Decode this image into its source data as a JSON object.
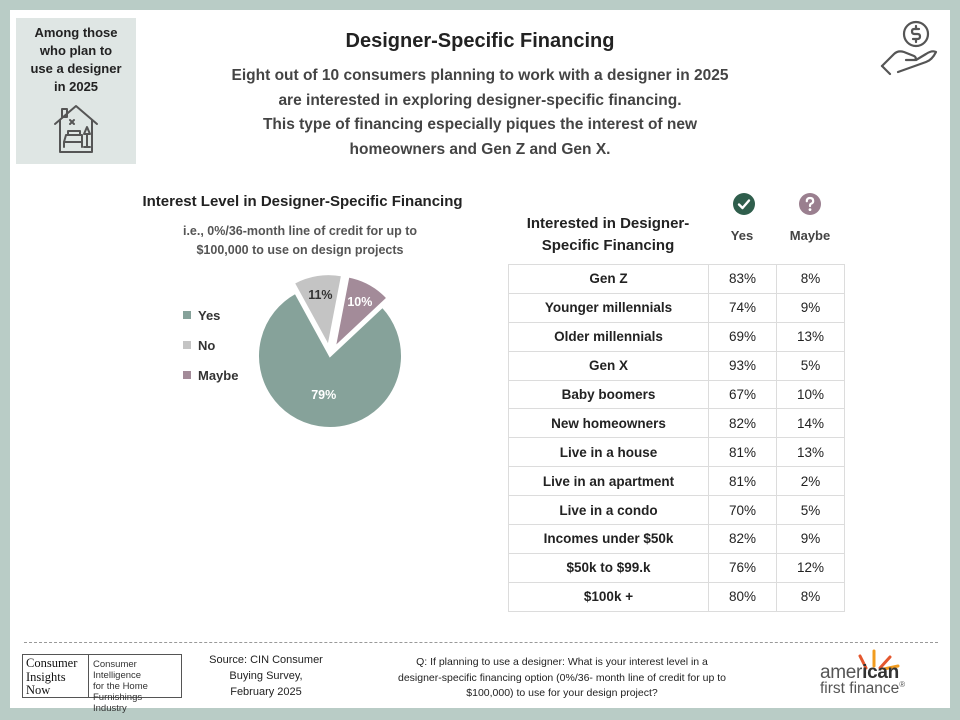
{
  "audience_box": {
    "lines": [
      "Among those",
      "who plan to",
      "use a designer",
      "in 2025"
    ],
    "icon": "home-interior-icon"
  },
  "header": {
    "title": "Designer-Specific Financing",
    "subtitle_lines": [
      "Eight out of 10 consumers planning to work with a designer in 2025",
      "are interested in exploring designer-specific financing.",
      "This type of financing especially piques the interest of new",
      "homeowners and Gen Z and Gen X."
    ],
    "icon": "hand-money-icon"
  },
  "chart_data": [
    {
      "type": "pie",
      "title": "Interest Level in Designer-Specific Financing",
      "subtitle_lines": [
        "i.e., 0%/36-month line of credit for up to",
        "$100,000 to use on design projects"
      ],
      "categories": [
        "Yes",
        "No",
        "Maybe"
      ],
      "values": [
        79,
        11,
        10
      ],
      "labels": [
        "79%",
        "11%",
        "10%"
      ],
      "colors": [
        "#86a29a",
        "#c4c4c4",
        "#a38b99"
      ],
      "exploded": [
        "No",
        "Maybe"
      ],
      "legend_placement": "left"
    },
    {
      "type": "table",
      "title_lines": [
        "Interested in Designer-",
        "Specific Financing"
      ],
      "columns": [
        "Yes",
        "Maybe"
      ],
      "column_icons": [
        "check-circle-icon",
        "question-circle-icon"
      ],
      "icon_colors": [
        "#2f5e4c",
        "#9a7f8f"
      ],
      "rows": [
        {
          "segment": "Gen Z",
          "yes": "83%",
          "maybe": "8%"
        },
        {
          "segment": "Younger millennials",
          "yes": "74%",
          "maybe": "9%"
        },
        {
          "segment": "Older millennials",
          "yes": "69%",
          "maybe": "13%"
        },
        {
          "segment": "Gen X",
          "yes": "93%",
          "maybe": "5%"
        },
        {
          "segment": "Baby boomers",
          "yes": "67%",
          "maybe": "10%"
        },
        {
          "segment": "New homeowners",
          "yes": "82%",
          "maybe": "14%"
        },
        {
          "segment": "Live in a house",
          "yes": "81%",
          "maybe": "13%"
        },
        {
          "segment": "Live in an apartment",
          "yes": "81%",
          "maybe": "2%"
        },
        {
          "segment": "Live in a condo",
          "yes": "70%",
          "maybe": "5%"
        },
        {
          "segment": "Incomes under $50k",
          "yes": "82%",
          "maybe": "9%"
        },
        {
          "segment": "$50k to $99.k",
          "yes": "76%",
          "maybe": "12%"
        },
        {
          "segment": "$100k +",
          "yes": "80%",
          "maybe": "8%"
        }
      ]
    }
  ],
  "footer": {
    "cin_logo": {
      "left_lines": [
        "Consumer",
        "Insights",
        "Now"
      ],
      "right_lines": [
        "Consumer Intelligence",
        "for the Home",
        "Furnishings Industry"
      ]
    },
    "source_lines": [
      "Source: CIN Consumer",
      "Buying Survey,",
      "February 2025"
    ],
    "question_lines": [
      "Q: If planning to use a designer: What is your interest level in a",
      "designer-specific financing option (0%/36- month line of credit for up to",
      "$100,000) to use for your design project?"
    ],
    "brand_logo": {
      "part1": "amer",
      "part2": "ican",
      "line2": "first finance",
      "mark": "®"
    }
  }
}
